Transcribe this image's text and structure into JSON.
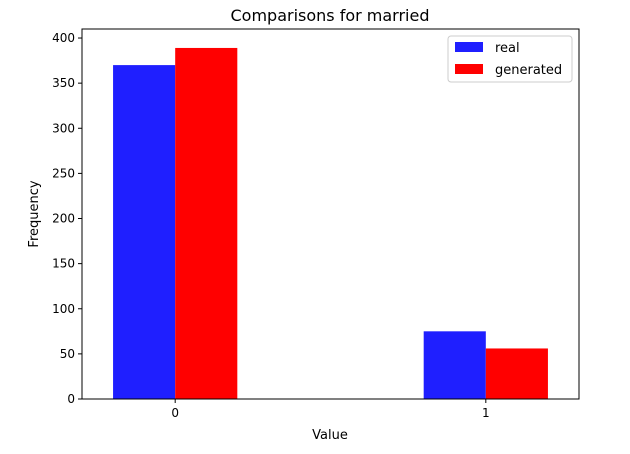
{
  "chart_data": {
    "type": "bar",
    "title": "Comparisons for married",
    "xlabel": "Value",
    "ylabel": "Frequency",
    "categories": [
      "0",
      "1"
    ],
    "ylim": [
      0,
      410
    ],
    "yticks": [
      0,
      50,
      100,
      150,
      200,
      250,
      300,
      350,
      400
    ],
    "grid": false,
    "legend_position": "top-right",
    "series": [
      {
        "name": "real",
        "color": "#1f1fff",
        "values": [
          370,
          75
        ]
      },
      {
        "name": "generated",
        "color": "#ff0000",
        "values": [
          389,
          56
        ]
      }
    ]
  }
}
